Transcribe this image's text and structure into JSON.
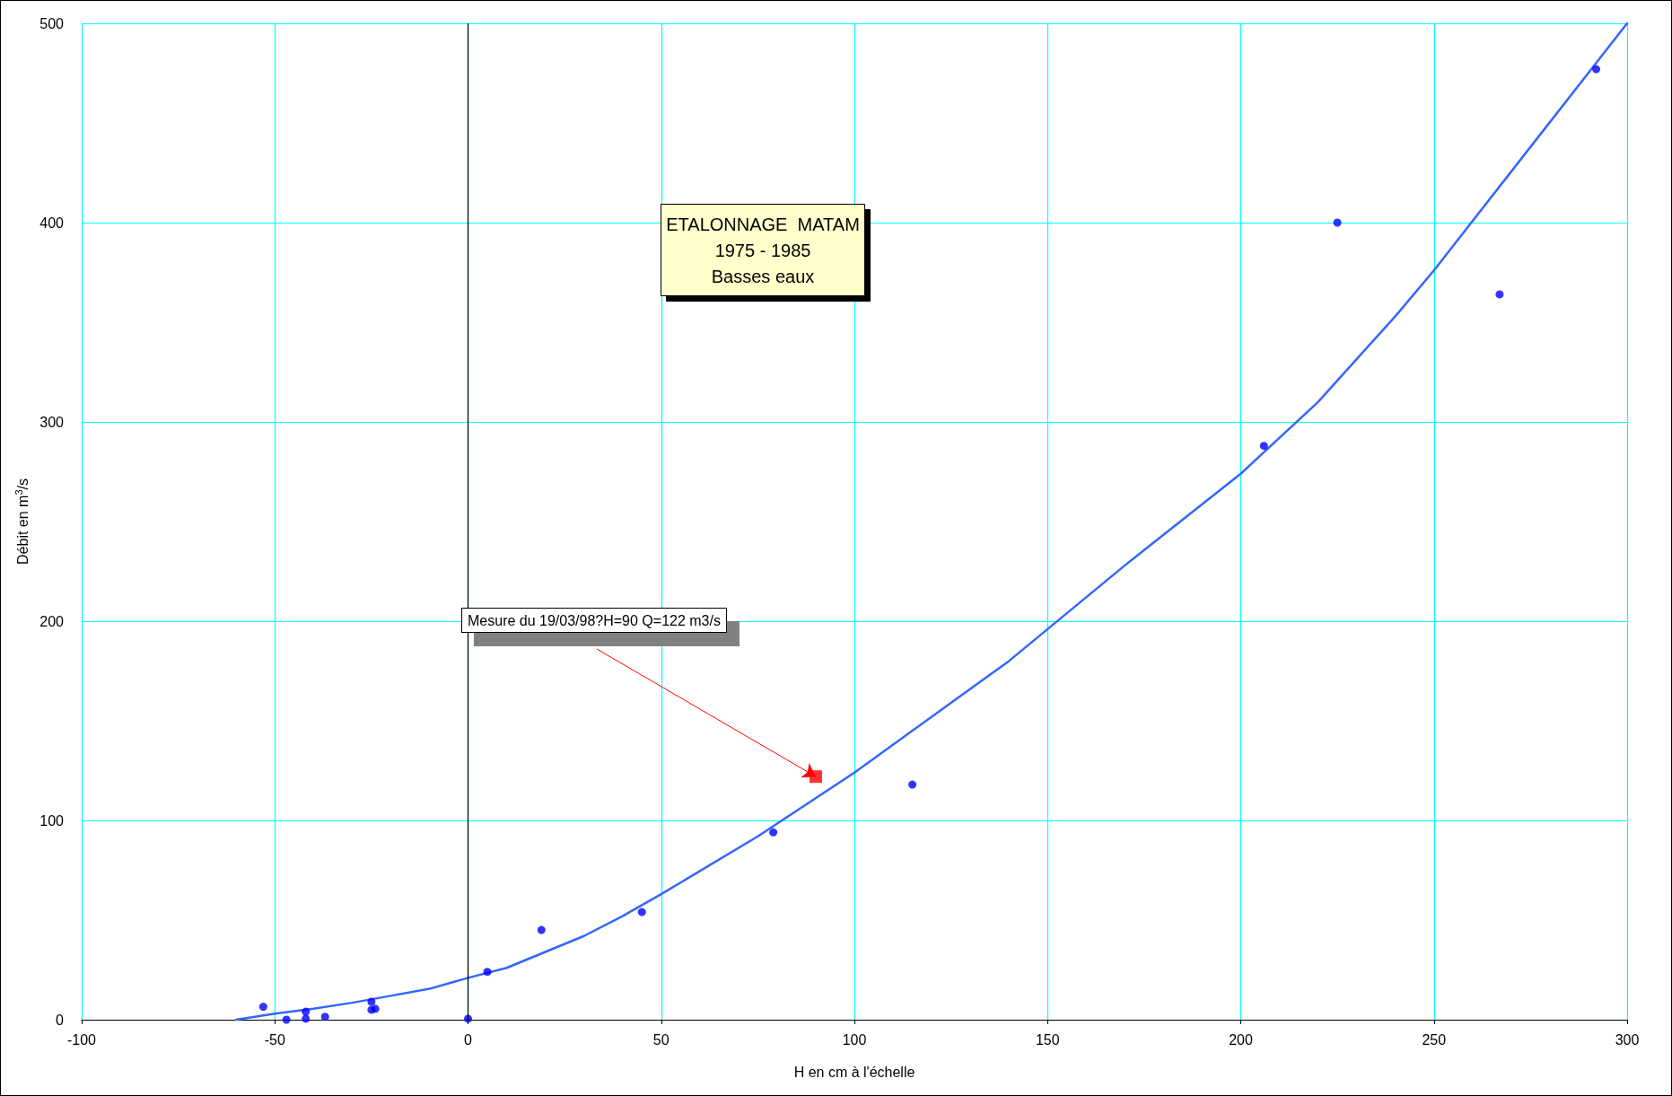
{
  "chart_data": {
    "type": "scatter",
    "title": "ETALONNAGE  MATAM\n1975 - 1985\nBasses eaux",
    "xlabel": "H en cm à l'échelle",
    "ylabel": "Débit en m$^{3}$/s",
    "xlim": [
      -100,
      300
    ],
    "xticks": [
      -100,
      -50,
      0,
      50,
      100,
      150,
      200,
      250,
      300
    ],
    "ylim": [
      0,
      500
    ],
    "yticks": [
      0,
      100,
      200,
      300,
      400,
      500
    ],
    "grid": true,
    "legend": false,
    "annotations": [
      "Mesure du 19/03/98?H=90 Q=122 m3/s"
    ],
    "ref_lines": [
      {
        "axis": "x",
        "value": 0,
        "label": null,
        "color": "#000000"
      }
    ],
    "series": [
      {
        "type": "line",
        "color": "#3366ff",
        "marker": "none",
        "line_style": "solid",
        "x": [
          -60,
          -50,
          -40,
          -30,
          -20,
          -10,
          0,
          10,
          20,
          30,
          40,
          50,
          75,
          100,
          140,
          170,
          200,
          220,
          240,
          250,
          275,
          300
        ],
        "values": [
          0,
          3,
          5.5,
          8.5,
          12,
          15.5,
          21,
          26,
          34,
          42,
          52,
          63,
          92,
          124,
          180,
          228,
          274,
          310,
          353,
          376,
          438,
          500
        ]
      },
      {
        "color": "#0000ff",
        "marker": "circle",
        "x": [
          -53,
          -47,
          -42,
          -42,
          -37,
          -25,
          -25,
          -24,
          0,
          5,
          19,
          45,
          79,
          115,
          206,
          225,
          267,
          292
        ],
        "values": [
          6.5,
          0,
          4,
          0.5,
          1.5,
          9,
          5,
          5.5,
          0.5,
          24,
          45,
          54,
          94,
          118,
          288,
          400,
          364,
          477
        ]
      },
      {
        "color": "#ff0000",
        "marker": "square",
        "x": [
          90
        ],
        "values": [
          122
        ]
      }
    ]
  }
}
